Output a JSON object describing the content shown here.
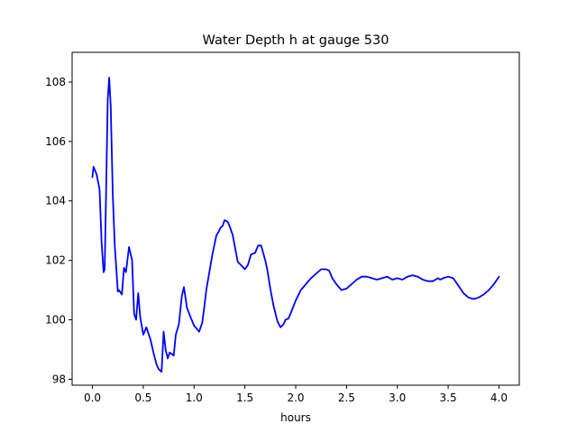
{
  "chart_data": {
    "type": "line",
    "title": "Water Depth h at gauge 530",
    "xlabel": "hours",
    "ylabel": "",
    "xlim": [
      -0.2,
      4.2
    ],
    "ylim": [
      97.8,
      109.0
    ],
    "x_ticks": [
      0.0,
      0.5,
      1.0,
      1.5,
      2.0,
      2.5,
      3.0,
      3.5,
      4.0
    ],
    "x_tick_labels": [
      "0.0",
      "0.5",
      "1.0",
      "1.5",
      "2.0",
      "2.5",
      "3.0",
      "3.5",
      "4.0"
    ],
    "y_ticks": [
      98,
      100,
      102,
      104,
      106,
      108
    ],
    "y_tick_labels": [
      "98",
      "100",
      "102",
      "104",
      "106",
      "108"
    ],
    "grid": false,
    "legend": null,
    "series": [
      {
        "color": "#0000ff",
        "x": [
          0.0,
          0.01,
          0.04,
          0.07,
          0.09,
          0.11,
          0.12,
          0.135,
          0.15,
          0.165,
          0.18,
          0.2,
          0.22,
          0.25,
          0.26,
          0.29,
          0.31,
          0.33,
          0.36,
          0.39,
          0.41,
          0.43,
          0.45,
          0.47,
          0.5,
          0.53,
          0.57,
          0.6,
          0.63,
          0.65,
          0.68,
          0.7,
          0.72,
          0.74,
          0.76,
          0.8,
          0.82,
          0.85,
          0.88,
          0.9,
          0.93,
          0.97,
          1.0,
          1.05,
          1.08,
          1.1,
          1.12,
          1.15,
          1.18,
          1.22,
          1.24,
          1.26,
          1.28,
          1.3,
          1.33,
          1.35,
          1.38,
          1.41,
          1.43,
          1.46,
          1.5,
          1.53,
          1.56,
          1.6,
          1.63,
          1.66,
          1.7,
          1.72,
          1.75,
          1.78,
          1.82,
          1.85,
          1.88,
          1.9,
          1.93,
          1.96,
          2.0,
          2.05,
          2.1,
          2.15,
          2.2,
          2.25,
          2.3,
          2.33,
          2.36,
          2.4,
          2.45,
          2.5,
          2.55,
          2.6,
          2.65,
          2.7,
          2.75,
          2.8,
          2.85,
          2.9,
          2.95,
          3.0,
          3.05,
          3.1,
          3.15,
          3.2,
          3.25,
          3.3,
          3.35,
          3.4,
          3.42,
          3.45,
          3.5,
          3.55,
          3.6,
          3.65,
          3.7,
          3.75,
          3.8,
          3.85,
          3.9,
          3.95,
          4.0
        ],
        "values": [
          104.8,
          105.15,
          104.9,
          104.4,
          102.6,
          101.6,
          101.7,
          104.5,
          107.4,
          108.15,
          107.2,
          104.2,
          102.5,
          100.95,
          101.0,
          100.85,
          101.75,
          101.6,
          102.45,
          102.0,
          100.2,
          100.0,
          100.9,
          100.1,
          99.5,
          99.75,
          99.35,
          98.9,
          98.5,
          98.35,
          98.25,
          99.6,
          99.0,
          98.7,
          98.9,
          98.8,
          99.5,
          99.85,
          100.8,
          101.1,
          100.4,
          100.05,
          99.8,
          99.6,
          99.9,
          100.4,
          101.0,
          101.6,
          102.2,
          102.85,
          102.95,
          103.1,
          103.15,
          103.35,
          103.3,
          103.15,
          102.85,
          102.3,
          101.95,
          101.85,
          101.7,
          101.85,
          102.2,
          102.25,
          102.5,
          102.5,
          102.0,
          101.7,
          101.05,
          100.5,
          99.95,
          99.75,
          99.85,
          100.0,
          100.05,
          100.3,
          100.65,
          101.0,
          101.2,
          101.4,
          101.55,
          101.7,
          101.7,
          101.65,
          101.4,
          101.2,
          101.0,
          101.05,
          101.2,
          101.35,
          101.45,
          101.45,
          101.4,
          101.35,
          101.4,
          101.45,
          101.35,
          101.4,
          101.35,
          101.45,
          101.5,
          101.45,
          101.35,
          101.3,
          101.3,
          101.4,
          101.35,
          101.4,
          101.45,
          101.4,
          101.15,
          100.9,
          100.75,
          100.7,
          100.75,
          100.85,
          101.0,
          101.2,
          101.45
        ]
      }
    ]
  }
}
